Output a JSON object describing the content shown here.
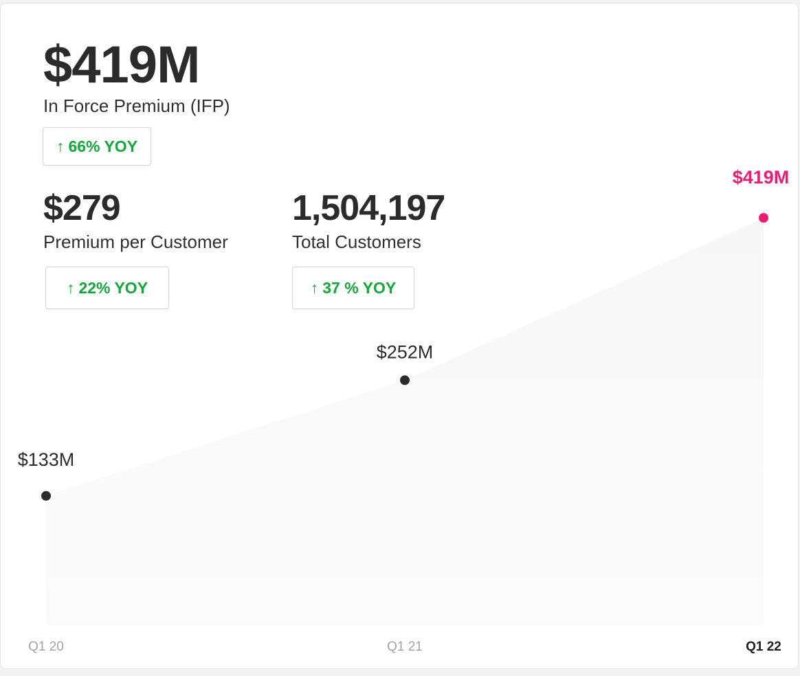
{
  "main_metric": {
    "value": "$419M",
    "label": "In Force Premium (IFP)",
    "badge_arrow": "↑",
    "badge_text": "66% YOY"
  },
  "metric_premium": {
    "value": "$279",
    "label": "Premium per Customer",
    "badge_arrow": "↑",
    "badge_text": "22% YOY"
  },
  "metric_customers": {
    "value": "1,504,197",
    "label": "Total Customers",
    "badge_arrow": "↑",
    "badge_text": "37 % YOY"
  },
  "colors": {
    "highlight": "#ec1c74",
    "point": "#2b2b2b",
    "positive": "#14a83b",
    "area": "#f7f7f7"
  },
  "chart_data": {
    "type": "area",
    "title": "",
    "xlabel": "",
    "ylabel": "",
    "categories": [
      "Q1 20",
      "Q1 21",
      "Q1 22"
    ],
    "values": [
      133,
      252,
      419
    ],
    "labels": [
      "$133M",
      "$252M",
      "$419M"
    ],
    "unit": "$M",
    "highlight_index": 2,
    "ylim": [
      0,
      450
    ],
    "grid": false,
    "legend": "none"
  }
}
